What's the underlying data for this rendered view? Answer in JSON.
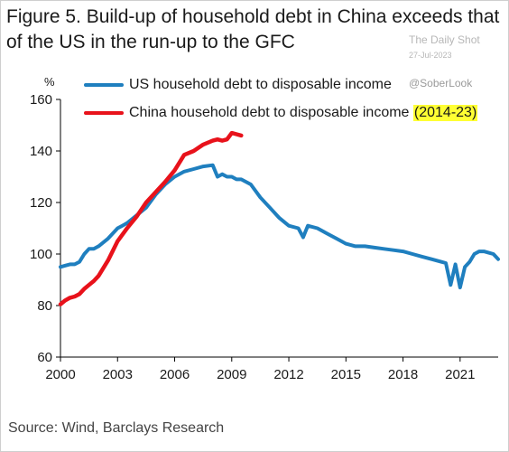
{
  "title": "Figure 5. Build-up of household debt in China exceeds that of the US in the run-up to the GFC",
  "watermark": {
    "name": "The Daily Shot",
    "date": "27-Jul-2023",
    "handle": "@SoberLook"
  },
  "source": "Source: Wind, Barclays Research",
  "colors": {
    "us": "#1f7fbf",
    "china": "#e8121b",
    "highlight": "#ffff33",
    "axis": "#000000"
  },
  "chart_data": {
    "type": "line",
    "ylabel": "%",
    "xlabel": "",
    "ylim": [
      60,
      160
    ],
    "xlim": [
      2000,
      2023
    ],
    "yticks": [
      60,
      80,
      100,
      120,
      140,
      160
    ],
    "xticks": [
      2000,
      2003,
      2006,
      2009,
      2012,
      2015,
      2018,
      2021
    ],
    "grid": false,
    "legend_position": "top-left",
    "series": [
      {
        "name": "US household debt to disposable income",
        "color": "#1f7fbf",
        "x": [
          2000,
          2000.25,
          2000.5,
          2000.75,
          2001,
          2001.25,
          2001.5,
          2001.75,
          2002,
          2002.5,
          2003,
          2003.25,
          2003.5,
          2004,
          2004.5,
          2005,
          2005.5,
          2006,
          2006.5,
          2007,
          2007.5,
          2008,
          2008.25,
          2008.5,
          2008.75,
          2009,
          2009.25,
          2009.5,
          2010,
          2010.5,
          2011,
          2011.5,
          2012,
          2012.5,
          2012.75,
          2013,
          2013.5,
          2014,
          2014.5,
          2015,
          2015.5,
          2016,
          2016.5,
          2017,
          2017.5,
          2018,
          2018.5,
          2019,
          2019.5,
          2020,
          2020.25,
          2020.5,
          2020.75,
          2021,
          2021.25,
          2021.5,
          2021.75,
          2022,
          2022.25,
          2022.5,
          2022.75,
          2023
        ],
        "y": [
          95,
          95.5,
          96,
          96,
          97,
          100,
          102,
          102,
          103,
          106,
          110,
          111,
          112,
          115,
          118,
          123,
          127,
          130,
          132,
          133,
          134,
          134.5,
          130,
          131,
          130,
          130,
          129,
          129,
          127,
          122,
          118,
          114,
          111,
          110,
          106.5,
          111,
          110,
          108,
          106,
          104,
          103,
          103,
          102.5,
          102,
          101.5,
          101,
          100,
          99,
          98,
          97,
          96.5,
          88,
          96,
          87,
          95,
          97,
          100,
          101,
          101,
          100.5,
          100,
          98
        ]
      },
      {
        "name": "China household debt to disposable income",
        "name_highlight": "(2014-23)",
        "color": "#e8121b",
        "x": [
          2000,
          2000.25,
          2000.5,
          2000.75,
          2001,
          2001.25,
          2001.5,
          2001.75,
          2002,
          2002.5,
          2003,
          2003.5,
          2004,
          2004.5,
          2005,
          2005.5,
          2006,
          2006.5,
          2007,
          2007.5,
          2008,
          2008.25,
          2008.5,
          2008.75,
          2009,
          2009.25,
          2009.5
        ],
        "y": [
          80.5,
          82,
          83,
          83.5,
          84.5,
          86.5,
          88,
          89.5,
          91.5,
          97.5,
          105,
          110,
          114.5,
          120,
          124,
          128,
          132.5,
          138.5,
          140,
          142.5,
          144,
          144.5,
          144,
          144.5,
          147,
          146.5,
          146
        ]
      }
    ]
  }
}
